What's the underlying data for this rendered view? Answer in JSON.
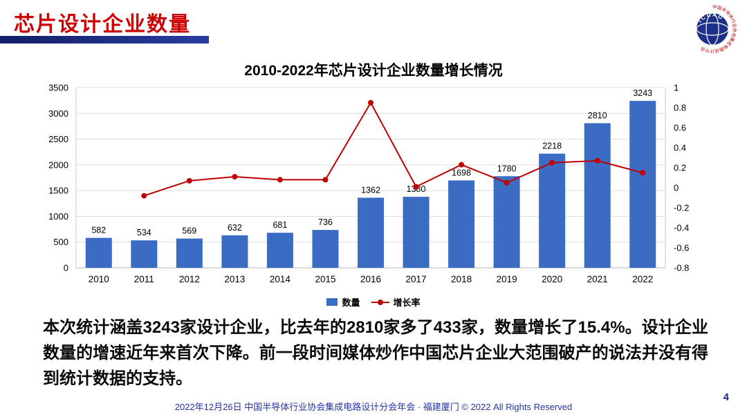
{
  "page": {
    "title": "芯片设计企业数量",
    "logo_text": "ICCAD",
    "logo_ring_text": "中国半导体行业协会集成电路设计分会",
    "body_text": "本次统计涵盖3243家设计企业，比去年的2810家多了433家，数量增长了15.4%。设计企业数量的增速近年来首次下降。前一段时间媒体炒作中国芯片企业大范围破产的说法并没有得到统计数据的支持。",
    "footer": "2022年12月26日 中国半导体行业协会集成电路设计分会年会 · 福建厦门 © 2022 All Rights Reserved",
    "page_number": "4"
  },
  "chart_data": {
    "type": "combo",
    "title": "2010-2022年芯片设计企业数量增长情况",
    "categories": [
      "2010",
      "2011",
      "2012",
      "2013",
      "2014",
      "2015",
      "2016",
      "2017",
      "2018",
      "2019",
      "2020",
      "2021",
      "2022"
    ],
    "series": [
      {
        "name": "数量",
        "type": "bar",
        "axis": "left",
        "color": "#3a6cc4",
        "values": [
          582,
          534,
          569,
          632,
          681,
          736,
          1362,
          1380,
          1698,
          1780,
          2218,
          2810,
          3243
        ],
        "labels": [
          "582",
          "534",
          "569",
          "632",
          "681",
          "736",
          "1362",
          "1380",
          "1698",
          "1780",
          "2218",
          "2810",
          "3243"
        ]
      },
      {
        "name": "增长率",
        "type": "line",
        "axis": "right",
        "color": "#c00000",
        "values": [
          null,
          -0.08,
          0.07,
          0.11,
          0.08,
          0.08,
          0.85,
          0.01,
          0.23,
          0.05,
          0.25,
          0.27,
          0.15
        ]
      }
    ],
    "left_axis": {
      "min": 0,
      "max": 3500,
      "step": 500,
      "ticks": [
        "0",
        "500",
        "1000",
        "1500",
        "2000",
        "2500",
        "3000",
        "3500"
      ]
    },
    "right_axis": {
      "min": -0.8,
      "max": 1.0,
      "step": 0.2,
      "ticks": [
        "-0.8",
        "-0.6",
        "-0.4",
        "-0.2",
        "0",
        "0.2",
        "0.4",
        "0.6",
        "0.8",
        "1"
      ]
    },
    "legend_position": "bottom",
    "grid": true
  }
}
